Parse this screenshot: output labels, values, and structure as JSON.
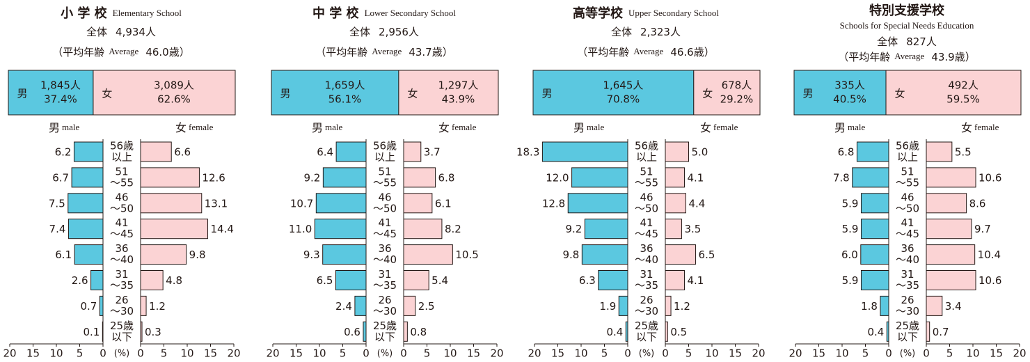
{
  "chart_data": [
    {
      "type": "pyramid",
      "title": "小 学 校",
      "title_en": "Elementary School",
      "total_label": "全体",
      "total": "4,934人",
      "average_label": "（平均年齢",
      "average_label_en": "Average",
      "average": "46.0歳）",
      "gender": {
        "categories": [
          "男",
          "女"
        ],
        "values": [
          37.4,
          62.6
        ],
        "value_labels": [
          "37.4%",
          "62.6%"
        ],
        "count_labels": [
          "1,845人",
          "3,089人"
        ]
      },
      "categories": [
        [
          "56歳",
          "以上"
        ],
        [
          "51",
          "〜55"
        ],
        [
          "46",
          "〜50"
        ],
        [
          "41",
          "〜45"
        ],
        [
          "36",
          "〜40"
        ],
        [
          "31",
          "〜35"
        ],
        [
          "26",
          "〜30"
        ],
        [
          "25歳",
          "以下"
        ]
      ],
      "series": [
        {
          "name": "男",
          "name_en": "male",
          "color": "#5bc8e0",
          "values": [
            6.2,
            6.7,
            7.5,
            7.4,
            6.1,
            2.6,
            0.7,
            0.1
          ],
          "value_labels": [
            "6.2",
            "6.7",
            "7.5",
            "7.4",
            "6.1",
            "2.6",
            "0.7",
            "0.1"
          ]
        },
        {
          "name": "女",
          "name_en": "female",
          "color": "#fbd3d4",
          "values": [
            6.6,
            12.6,
            13.1,
            14.4,
            9.8,
            4.8,
            1.2,
            0.3
          ],
          "value_labels": [
            "6.6",
            "12.6",
            "13.1",
            "14.4",
            "9.8",
            "4.8",
            "1.2",
            "0.3"
          ]
        }
      ],
      "xlim": [
        0,
        20
      ],
      "xticks": [
        0,
        5,
        10,
        15,
        20
      ],
      "xlabel": "(%)"
    },
    {
      "type": "pyramid",
      "title": "中 学 校",
      "title_en": "Lower Secondary School",
      "total_label": "全体",
      "total": "2,956人",
      "average_label": "（平均年齢",
      "average_label_en": "Average",
      "average": "43.7歳）",
      "gender": {
        "categories": [
          "男",
          "女"
        ],
        "values": [
          56.1,
          43.9
        ],
        "value_labels": [
          "56.1%",
          "43.9%"
        ],
        "count_labels": [
          "1,659人",
          "1,297人"
        ]
      },
      "categories": [
        [
          "56歳",
          "以上"
        ],
        [
          "51",
          "〜55"
        ],
        [
          "46",
          "〜50"
        ],
        [
          "41",
          "〜45"
        ],
        [
          "36",
          "〜40"
        ],
        [
          "31",
          "〜35"
        ],
        [
          "26",
          "〜30"
        ],
        [
          "25歳",
          "以下"
        ]
      ],
      "series": [
        {
          "name": "男",
          "name_en": "male",
          "color": "#5bc8e0",
          "values": [
            6.4,
            9.2,
            10.7,
            11.0,
            9.3,
            6.5,
            2.4,
            0.6
          ],
          "value_labels": [
            "6.4",
            "9.2",
            "10.7",
            "11.0",
            "9.3",
            "6.5",
            "2.4",
            "0.6"
          ]
        },
        {
          "name": "女",
          "name_en": "female",
          "color": "#fbd3d4",
          "values": [
            3.7,
            6.8,
            6.1,
            8.2,
            10.5,
            5.4,
            2.5,
            0.8
          ],
          "value_labels": [
            "3.7",
            "6.8",
            "6.1",
            "8.2",
            "10.5",
            "5.4",
            "2.5",
            "0.8"
          ]
        }
      ],
      "xlim": [
        0,
        20
      ],
      "xticks": [
        0,
        5,
        10,
        15,
        20
      ],
      "xlabel": "(%)"
    },
    {
      "type": "pyramid",
      "title": "高等学校",
      "title_en": "Upper Secondary School",
      "total_label": "全体",
      "total": "2,323人",
      "average_label": "（平均年齢",
      "average_label_en": "Average",
      "average": "46.6歳）",
      "gender": {
        "categories": [
          "男",
          "女"
        ],
        "values": [
          70.8,
          29.2
        ],
        "value_labels": [
          "70.8%",
          "29.2%"
        ],
        "count_labels": [
          "1,645人",
          "678人"
        ]
      },
      "categories": [
        [
          "56歳",
          "以上"
        ],
        [
          "51",
          "〜55"
        ],
        [
          "46",
          "〜50"
        ],
        [
          "41",
          "〜45"
        ],
        [
          "36",
          "〜40"
        ],
        [
          "31",
          "〜35"
        ],
        [
          "26",
          "〜30"
        ],
        [
          "25歳",
          "以下"
        ]
      ],
      "series": [
        {
          "name": "男",
          "name_en": "male",
          "color": "#5bc8e0",
          "values": [
            18.3,
            12.0,
            12.8,
            9.2,
            9.8,
            6.3,
            1.9,
            0.4
          ],
          "value_labels": [
            "18.3",
            "12.0",
            "12.8",
            "9.2",
            "9.8",
            "6.3",
            "1.9",
            "0.4"
          ]
        },
        {
          "name": "女",
          "name_en": "female",
          "color": "#fbd3d4",
          "values": [
            5.0,
            4.1,
            4.4,
            3.5,
            6.5,
            4.1,
            1.2,
            0.5
          ],
          "value_labels": [
            "5.0",
            "4.1",
            "4.4",
            "3.5",
            "6.5",
            "4.1",
            "1.2",
            "0.5"
          ]
        }
      ],
      "xlim": [
        0,
        20
      ],
      "xticks": [
        0,
        5,
        10,
        15,
        20
      ],
      "xlabel": "(%)"
    },
    {
      "type": "pyramid",
      "title": "特別支援学校",
      "title_en": "Schools for Special Needs Education",
      "total_label": "全体",
      "total": "827人",
      "average_label": "（平均年齢",
      "average_label_en": "Average",
      "average": "43.9歳）",
      "gender": {
        "categories": [
          "男",
          "女"
        ],
        "values": [
          40.5,
          59.5
        ],
        "value_labels": [
          "40.5%",
          "59.5%"
        ],
        "count_labels": [
          "335人",
          "492人"
        ]
      },
      "categories": [
        [
          "56歳",
          "以上"
        ],
        [
          "51",
          "〜55"
        ],
        [
          "46",
          "〜50"
        ],
        [
          "41",
          "〜45"
        ],
        [
          "36",
          "〜40"
        ],
        [
          "31",
          "〜35"
        ],
        [
          "26",
          "〜30"
        ],
        [
          "25歳",
          "以下"
        ]
      ],
      "series": [
        {
          "name": "男",
          "name_en": "male",
          "color": "#5bc8e0",
          "values": [
            6.8,
            7.8,
            5.9,
            5.9,
            6.0,
            5.9,
            1.8,
            0.4
          ],
          "value_labels": [
            "6.8",
            "7.8",
            "5.9",
            "5.9",
            "6.0",
            "5.9",
            "1.8",
            "0.4"
          ]
        },
        {
          "name": "女",
          "name_en": "female",
          "color": "#fbd3d4",
          "values": [
            5.5,
            10.6,
            8.6,
            9.7,
            10.4,
            10.6,
            3.4,
            0.7
          ],
          "value_labels": [
            "5.5",
            "10.6",
            "8.6",
            "9.7",
            "10.4",
            "10.6",
            "3.4",
            "0.7"
          ]
        }
      ],
      "xlim": [
        0,
        20
      ],
      "xticks": [
        0,
        5,
        10,
        15,
        20
      ],
      "xlabel": "(%)"
    }
  ]
}
